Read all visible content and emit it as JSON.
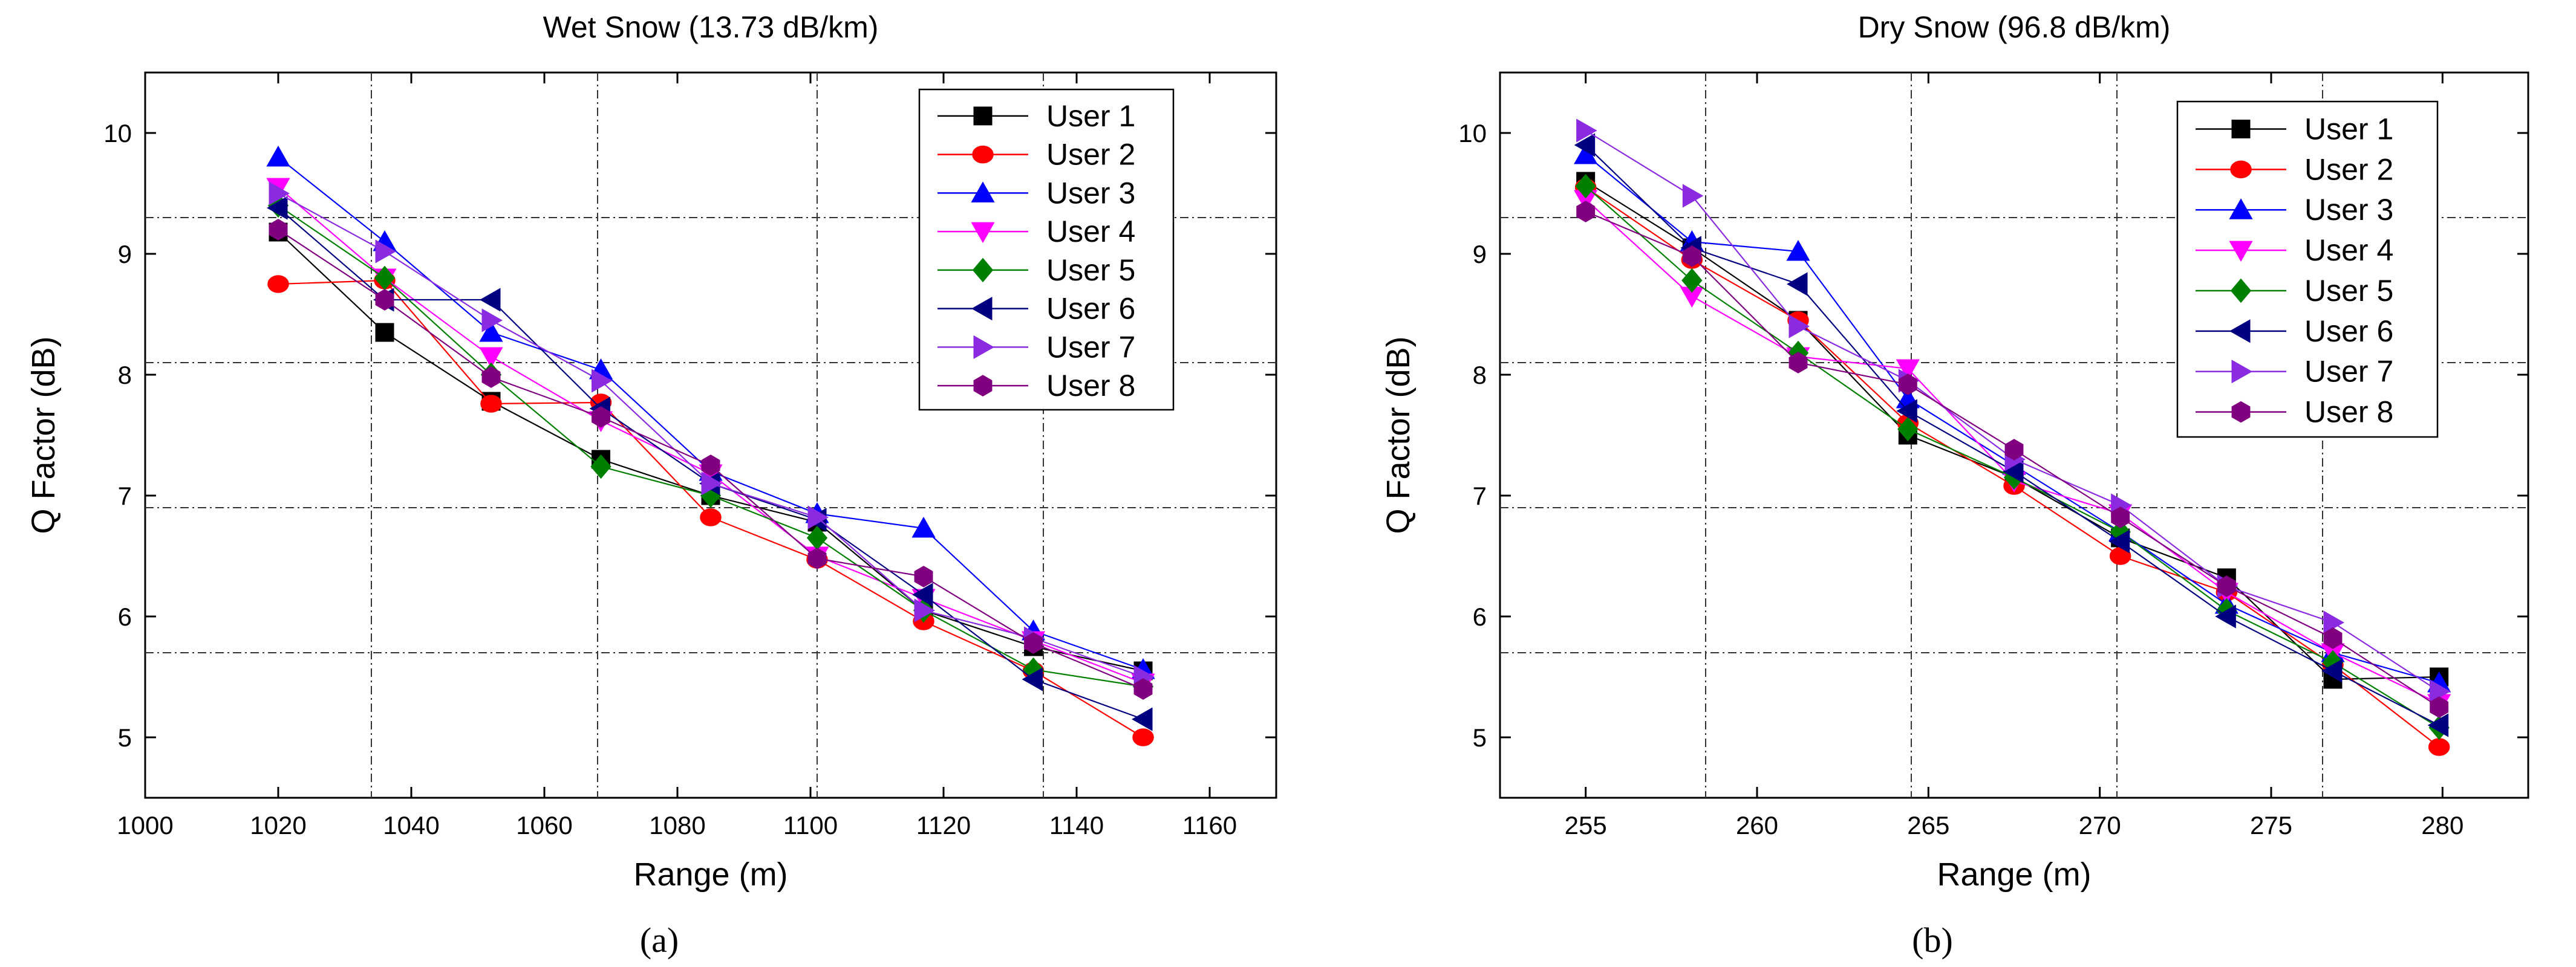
{
  "figure": {
    "captions": [
      "(a)",
      "(b)"
    ]
  },
  "legend_labels": [
    "User 1",
    "User 2",
    "User 3",
    "User 4",
    "User 5",
    "User 6",
    "User 7",
    "User 8"
  ],
  "series_style": [
    {
      "color": "#000000",
      "marker": "square"
    },
    {
      "color": "#ff0000",
      "marker": "circle"
    },
    {
      "color": "#0000ff",
      "marker": "triangle-up"
    },
    {
      "color": "#ff00ff",
      "marker": "triangle-down"
    },
    {
      "color": "#008000",
      "marker": "diamond"
    },
    {
      "color": "#000080",
      "marker": "triangle-left"
    },
    {
      "color": "#8a2be2",
      "marker": "triangle-right"
    },
    {
      "color": "#800080",
      "marker": "hexagon"
    }
  ],
  "chart_data": [
    {
      "type": "line",
      "title": "Wet Snow (13.73 dB/km)",
      "xlabel": "Range (m)",
      "ylabel": "Q Factor (dB)",
      "xlim": [
        1000,
        1170
      ],
      "ylim": [
        4.5,
        10.5
      ],
      "xticks": [
        1000,
        1020,
        1040,
        1060,
        1080,
        1100,
        1120,
        1140,
        1160
      ],
      "yticks": [
        5,
        6,
        7,
        8,
        9,
        10
      ],
      "grid": "dash-dot reference lines",
      "ref_lines_x": [
        1034,
        1068,
        1101,
        1135
      ],
      "ref_lines_y": [
        5.7,
        6.9,
        8.1,
        9.3
      ],
      "legend_position": "top-right",
      "x": [
        1020,
        1036,
        1052,
        1068.5,
        1085,
        1101,
        1117,
        1133.5,
        1150
      ],
      "series": [
        {
          "name": "User 1",
          "values": [
            9.18,
            8.35,
            7.78,
            7.3,
            7.0,
            6.78,
            6.05,
            5.75,
            5.55
          ]
        },
        {
          "name": "User 2",
          "values": [
            8.75,
            8.78,
            7.76,
            7.77,
            6.82,
            6.47,
            5.96,
            5.55,
            5.0
          ]
        },
        {
          "name": "User 3",
          "values": [
            9.8,
            9.1,
            8.35,
            8.04,
            7.2,
            6.85,
            6.73,
            5.88,
            5.56
          ]
        },
        {
          "name": "User 4",
          "values": [
            9.55,
            8.8,
            8.15,
            7.62,
            7.18,
            6.5,
            6.15,
            5.8,
            5.45
          ]
        },
        {
          "name": "User 5",
          "values": [
            9.4,
            8.8,
            8.0,
            7.24,
            7.0,
            6.65,
            6.05,
            5.56,
            5.42
          ]
        },
        {
          "name": "User 6",
          "values": [
            9.38,
            8.62,
            8.62,
            7.72,
            7.1,
            6.8,
            6.18,
            5.48,
            5.15
          ]
        },
        {
          "name": "User 7",
          "values": [
            9.5,
            9.02,
            8.45,
            7.95,
            7.1,
            6.82,
            6.05,
            5.82,
            5.5
          ]
        },
        {
          "name": "User 8",
          "values": [
            9.2,
            8.62,
            7.98,
            7.65,
            7.25,
            6.48,
            6.33,
            5.78,
            5.4
          ]
        }
      ]
    },
    {
      "type": "line",
      "title": "Dry Snow (96.8 dB/km)",
      "xlabel": "Range (m)",
      "ylabel": "Q Factor (dB)",
      "xlim": [
        252.5,
        282.5
      ],
      "ylim": [
        4.5,
        10.5
      ],
      "xticks": [
        255,
        260,
        265,
        270,
        275,
        280
      ],
      "yticks": [
        5,
        6,
        7,
        8,
        9,
        10
      ],
      "grid": "dash-dot reference lines",
      "ref_lines_x": [
        258.5,
        264.5,
        270.5,
        276.5
      ],
      "ref_lines_y": [
        5.7,
        6.9,
        8.1,
        9.3
      ],
      "legend_position": "top-right",
      "x": [
        255,
        258.1,
        261.2,
        264.4,
        267.5,
        270.6,
        273.7,
        276.8,
        279.9
      ],
      "series": [
        {
          "name": "User 1",
          "values": [
            9.6,
            9.05,
            8.45,
            7.5,
            7.15,
            6.65,
            6.32,
            5.48,
            5.5
          ]
        },
        {
          "name": "User 2",
          "values": [
            9.55,
            8.95,
            8.45,
            7.6,
            7.08,
            6.5,
            6.2,
            5.6,
            4.92
          ]
        },
        {
          "name": "User 3",
          "values": [
            9.82,
            9.1,
            9.02,
            7.8,
            7.25,
            6.7,
            6.1,
            5.7,
            5.45
          ]
        },
        {
          "name": "User 4",
          "values": [
            9.45,
            8.65,
            8.15,
            8.05,
            7.12,
            6.85,
            6.2,
            5.7,
            5.28
          ]
        },
        {
          "name": "User 5",
          "values": [
            9.56,
            8.78,
            8.18,
            7.55,
            7.15,
            6.7,
            6.05,
            5.62,
            5.08
          ]
        },
        {
          "name": "User 6",
          "values": [
            9.9,
            9.05,
            8.75,
            7.7,
            7.2,
            6.62,
            6.0,
            5.55,
            5.1
          ]
        },
        {
          "name": "User 7",
          "values": [
            10.02,
            9.48,
            8.4,
            7.95,
            7.3,
            6.92,
            6.25,
            5.95,
            5.38
          ]
        },
        {
          "name": "User 8",
          "values": [
            9.35,
            8.98,
            8.1,
            7.92,
            7.38,
            6.82,
            6.25,
            5.82,
            5.25
          ]
        }
      ]
    }
  ]
}
